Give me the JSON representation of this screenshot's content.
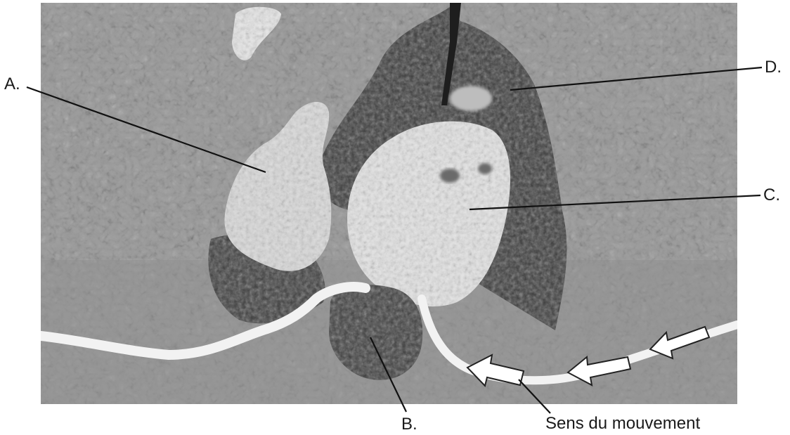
{
  "labels": {
    "a": "A.",
    "b": "B.",
    "c": "C.",
    "d": "D.",
    "movement": "Sens du mouvement"
  },
  "colors": {
    "background": "#ffffff",
    "photo_base": "#9a9a9a",
    "leader_line": "#111111",
    "arrow_fill": "#ffffff",
    "arrow_stroke": "#222222"
  }
}
